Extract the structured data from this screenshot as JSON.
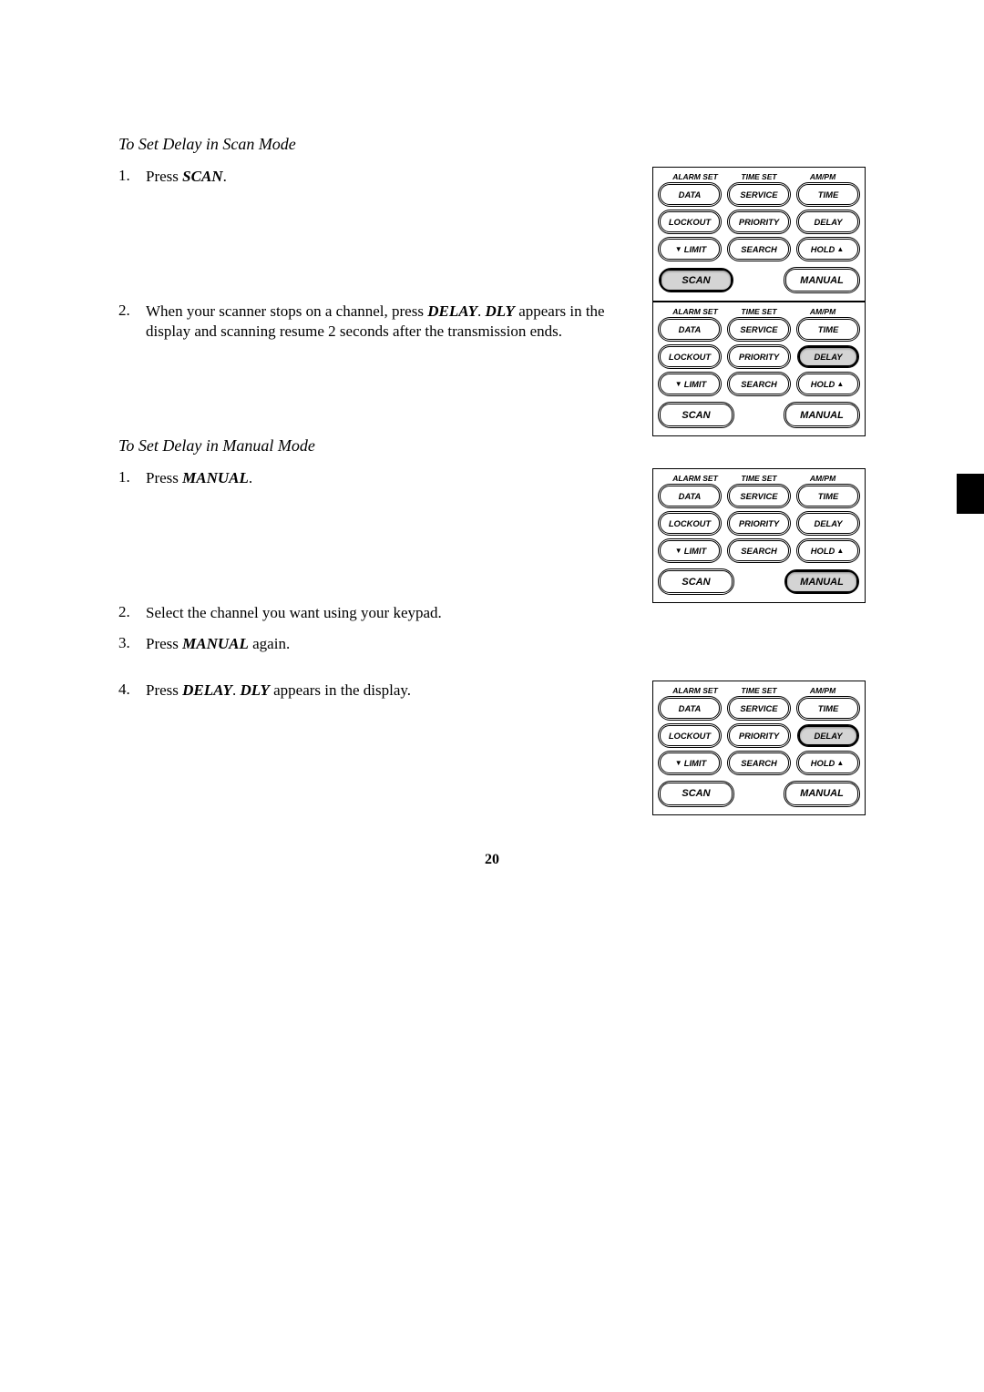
{
  "page_number": "20",
  "side_tab_color": "#000000",
  "section_a": {
    "heading": "To Set Delay in Scan Mode",
    "steps": [
      {
        "num": "1.",
        "html": "Press <span class='bold-key'>SCAN</span>."
      },
      {
        "num": "2.",
        "html": "When your scanner stops on a channel, press <span class='bold-key'>DELAY</span>. <span class='bold-code'>DLY</span> appears in the display and scanning resume 2 seconds after the transmission ends."
      }
    ]
  },
  "section_b": {
    "heading": "To Set Delay in Manual Mode",
    "steps": [
      {
        "num": "1.",
        "html": "Press <span class='bold-key'>MANUAL</span>."
      },
      {
        "num": "2.",
        "html": "Select the channel you want using your keypad."
      },
      {
        "num": "3.",
        "html": "Press <span class='bold-key'>MANUAL</span> again."
      },
      {
        "num": "4.",
        "html": "Press <span class='bold-key'>DELAY</span>. <span class='bold-code'>DLY</span> appears in the display."
      }
    ]
  },
  "keypad": {
    "top_labels": [
      "ALARM SET",
      "TIME SET",
      "AM/PM"
    ],
    "rows": [
      [
        "DATA",
        "SERVICE",
        "TIME"
      ],
      [
        "LOCKOUT",
        "PRIORITY",
        "DELAY"
      ],
      [
        "▼ LIMIT",
        "SEARCH",
        "HOLD ▲"
      ]
    ],
    "bottom": {
      "left": "SCAN",
      "right": "MANUAL"
    }
  },
  "panels": [
    {
      "pressed": "SCAN"
    },
    {
      "pressed": "DELAY"
    },
    {
      "pressed": "MANUAL"
    },
    {
      "pressed": "DELAY"
    }
  ],
  "colors": {
    "page_bg": "#ffffff",
    "text": "#000000",
    "panel_border": "#000000",
    "btn_pressed_bg": "#d4d4d4"
  },
  "typography": {
    "body_font": "Georgia, Times New Roman, serif",
    "ui_font": "Arial, Helvetica, sans-serif",
    "heading_fontsize_pt": 13,
    "body_fontsize_pt": 13,
    "btn_fontsize_pt": 7,
    "btn_wide_fontsize_pt": 8
  }
}
